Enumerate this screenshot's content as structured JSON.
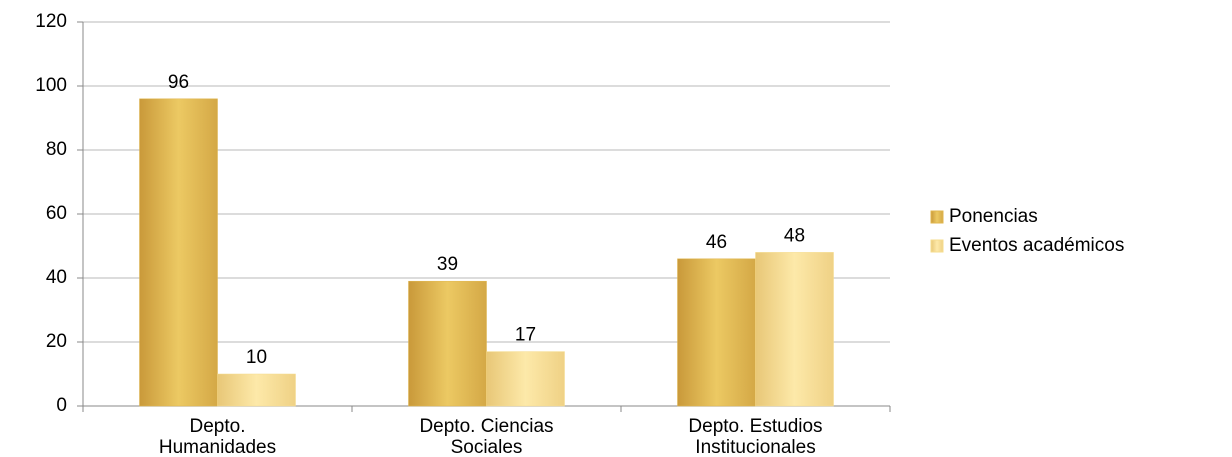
{
  "chart_data": {
    "type": "bar",
    "categories": [
      "Depto. Humanidades",
      "Depto. Ciencias Sociales",
      "Depto. Estudios Institucionales"
    ],
    "series": [
      {
        "name": "Ponencias",
        "color": "#e0b64c",
        "values": [
          96,
          39,
          46
        ]
      },
      {
        "name": "Eventos académicos",
        "color": "#f6dc8e",
        "values": [
          10,
          17,
          48
        ]
      }
    ],
    "ylim": [
      0,
      120
    ],
    "yticks": [
      0,
      20,
      40,
      60,
      80,
      100,
      120
    ],
    "grid": true,
    "legend": "right"
  }
}
